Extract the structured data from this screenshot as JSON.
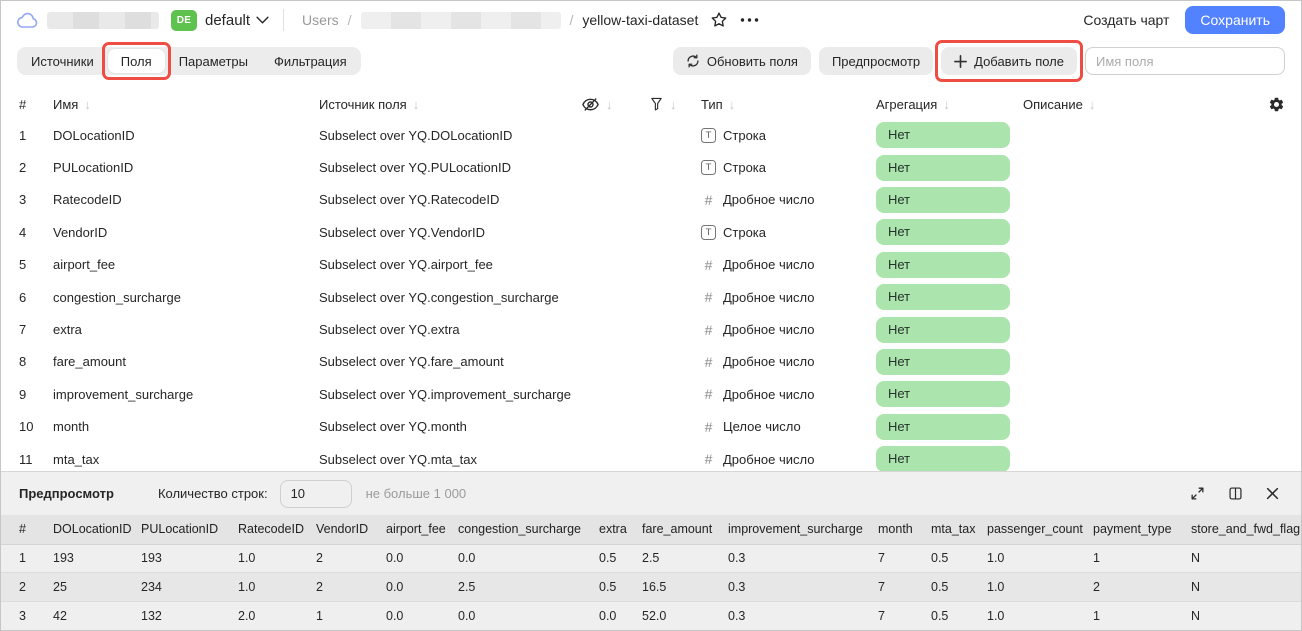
{
  "topbar": {
    "workspace_badge": "DE",
    "workspace_name": "default",
    "breadcrumb_root": "Users",
    "breadcrumb_separator": "/",
    "dataset_name": "yellow-taxi-dataset",
    "create_chart_label": "Создать чарт",
    "save_label": "Сохранить"
  },
  "tabs": {
    "active": "Поля",
    "items": [
      {
        "label": "Источники"
      },
      {
        "label": "Поля"
      },
      {
        "label": "Параметры"
      },
      {
        "label": "Фильтрация"
      }
    ]
  },
  "toolbar": {
    "refresh_fields_label": "Обновить поля",
    "preview_label": "Предпросмотр",
    "add_field_label": "Добавить поле",
    "field_name_placeholder": "Имя поля"
  },
  "icons": {
    "type_string_glyph": "T",
    "type_number_glyph": "#",
    "sort_arrow_glyph": "↓",
    "plus_glyph": "+"
  },
  "fields_table": {
    "headers": {
      "index": "#",
      "name": "Имя",
      "source": "Источник поля",
      "type": "Тип",
      "aggregation": "Агрегация",
      "description": "Описание"
    },
    "rows": [
      {
        "n": "1",
        "name": "DOLocationID",
        "source": "Subselect over YQ.DOLocationID",
        "kind": "string",
        "type": "Строка",
        "aggregation": "Нет"
      },
      {
        "n": "2",
        "name": "PULocationID",
        "source": "Subselect over YQ.PULocationID",
        "kind": "string",
        "type": "Строка",
        "aggregation": "Нет"
      },
      {
        "n": "3",
        "name": "RatecodeID",
        "source": "Subselect over YQ.RatecodeID",
        "kind": "number",
        "type": "Дробное число",
        "aggregation": "Нет"
      },
      {
        "n": "4",
        "name": "VendorID",
        "source": "Subselect over YQ.VendorID",
        "kind": "string",
        "type": "Строка",
        "aggregation": "Нет"
      },
      {
        "n": "5",
        "name": "airport_fee",
        "source": "Subselect over YQ.airport_fee",
        "kind": "number",
        "type": "Дробное число",
        "aggregation": "Нет"
      },
      {
        "n": "6",
        "name": "congestion_surcharge",
        "source": "Subselect over YQ.congestion_surcharge",
        "kind": "number",
        "type": "Дробное число",
        "aggregation": "Нет"
      },
      {
        "n": "7",
        "name": "extra",
        "source": "Subselect over YQ.extra",
        "kind": "number",
        "type": "Дробное число",
        "aggregation": "Нет"
      },
      {
        "n": "8",
        "name": "fare_amount",
        "source": "Subselect over YQ.fare_amount",
        "kind": "number",
        "type": "Дробное число",
        "aggregation": "Нет"
      },
      {
        "n": "9",
        "name": "improvement_surcharge",
        "source": "Subselect over YQ.improvement_surcharge",
        "kind": "number",
        "type": "Дробное число",
        "aggregation": "Нет"
      },
      {
        "n": "10",
        "name": "month",
        "source": "Subselect over YQ.month",
        "kind": "number",
        "type": "Целое число",
        "aggregation": "Нет"
      },
      {
        "n": "11",
        "name": "mta_tax",
        "source": "Subselect over YQ.mta_tax",
        "kind": "number",
        "type": "Дробное число",
        "aggregation": "Нет"
      }
    ]
  },
  "preview": {
    "title": "Предпросмотр",
    "row_count_label": "Количество строк:",
    "row_count_value": "10",
    "row_count_hint": "не больше 1 000",
    "table": {
      "headers": [
        "#",
        "DOLocationID",
        "PULocationID",
        "RatecodeID",
        "VendorID",
        "airport_fee",
        "congestion_surcharge",
        "extra",
        "fare_amount",
        "improvement_surcharge",
        "month",
        "mta_tax",
        "passenger_count",
        "payment_type",
        "store_and_fwd_flag"
      ],
      "rows": [
        [
          "1",
          "193",
          "193",
          "1.0",
          "2",
          "0.0",
          "0.0",
          "0.5",
          "2.5",
          "0.3",
          "7",
          "0.5",
          "1.0",
          "1",
          "N"
        ],
        [
          "2",
          "25",
          "234",
          "1.0",
          "2",
          "0.0",
          "2.5",
          "0.5",
          "16.5",
          "0.3",
          "7",
          "0.5",
          "1.0",
          "2",
          "N"
        ],
        [
          "3",
          "42",
          "132",
          "2.0",
          "1",
          "0.0",
          "0.0",
          "0.0",
          "52.0",
          "0.3",
          "7",
          "0.5",
          "1.0",
          "1",
          "N"
        ]
      ]
    }
  },
  "colors": {
    "save_button_blue": "#5282ff",
    "workspace_badge_green": "#5fc24e",
    "aggregation_pill_green": "#ace4ae",
    "annotation_red": "#ee4d44"
  }
}
